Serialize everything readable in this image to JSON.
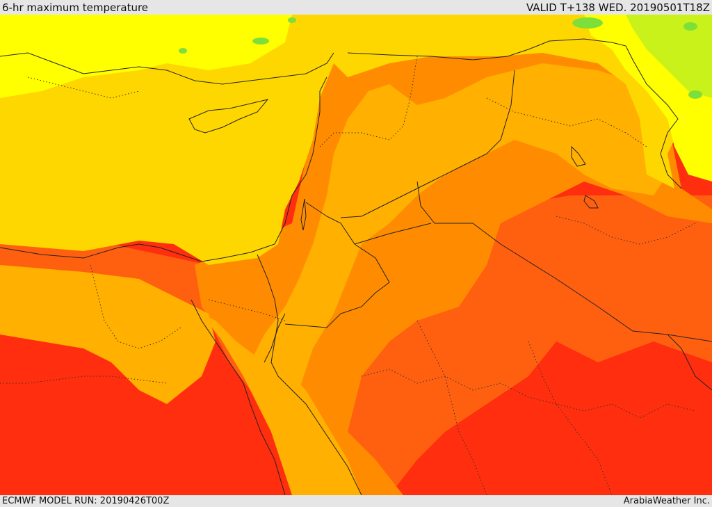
{
  "header": {
    "title": "6-hr maximum temperature",
    "valid": "VALID T+138 WED. 20190501T18Z"
  },
  "footer": {
    "model_run": "ECMWF MODEL RUN: 20190426T00Z",
    "credit": "ArabiaWeather Inc."
  },
  "map": {
    "field": "6-hr maximum temperature",
    "region": "Eastern Mediterranean, Levant, Iraq and northern Arabian Peninsula",
    "colors": {
      "green": "#7ddf3a",
      "yellow_green": "#c8f21a",
      "yellow": "#ffff00",
      "gold": "#ffd700",
      "amber": "#ffb000",
      "orange": "#ff8c00",
      "red_orange": "#ff6010",
      "red": "#ff2e0e"
    }
  }
}
